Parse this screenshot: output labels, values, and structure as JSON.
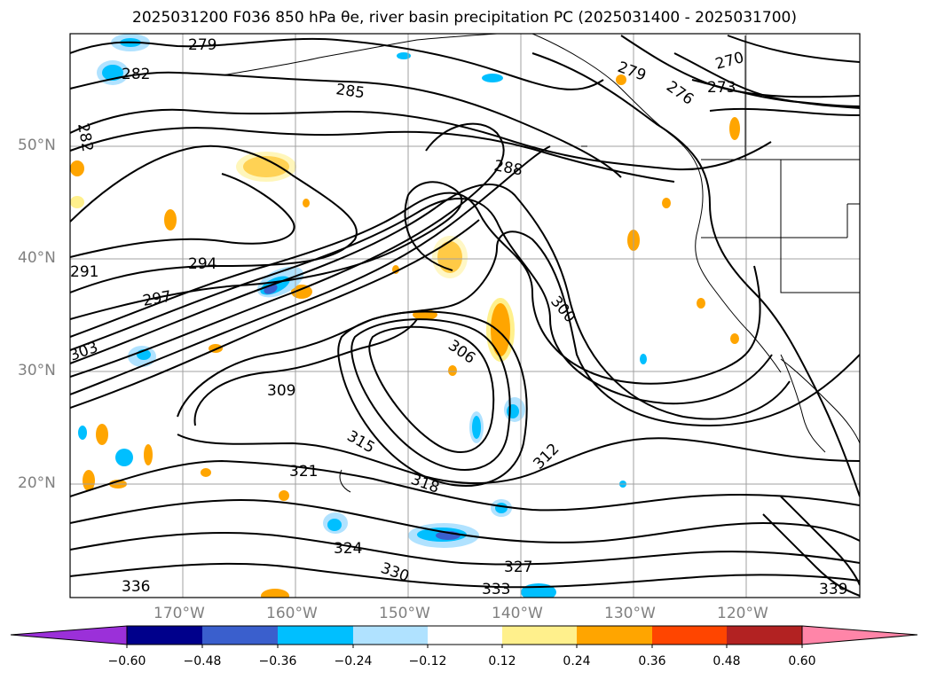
{
  "title": "2025031200 F036 850 hPa θe, river basin precipitation PC (2025031400 - 2025031700)",
  "map": {
    "lat_labels": [
      "50°N",
      "40°N",
      "30°N",
      "20°N"
    ],
    "lon_labels": [
      "170°W",
      "160°W",
      "150°W",
      "140°W",
      "130°W",
      "120°W"
    ],
    "contour_labels": [
      "279",
      "282",
      "285",
      "288",
      "291",
      "294",
      "297",
      "300",
      "303",
      "306",
      "309",
      "312",
      "315",
      "318",
      "321",
      "324",
      "327",
      "330",
      "333",
      "336",
      "339",
      "270",
      "273",
      "276",
      "279",
      "282"
    ],
    "line_color": "#000000",
    "grid_color": "#a0a0a0"
  },
  "colorbar": {
    "ticks": [
      "−0.60",
      "−0.48",
      "−0.36",
      "−0.24",
      "−0.12",
      "0.12",
      "0.24",
      "0.36",
      "0.48",
      "0.60"
    ],
    "colors": [
      "#9b30d9",
      "#00008b",
      "#3a5fcd",
      "#00bfff",
      "#b0e2ff",
      "#ffffff",
      "#fff08c",
      "#ffa500",
      "#ff4500",
      "#b22222",
      "#ff85a8"
    ]
  }
}
